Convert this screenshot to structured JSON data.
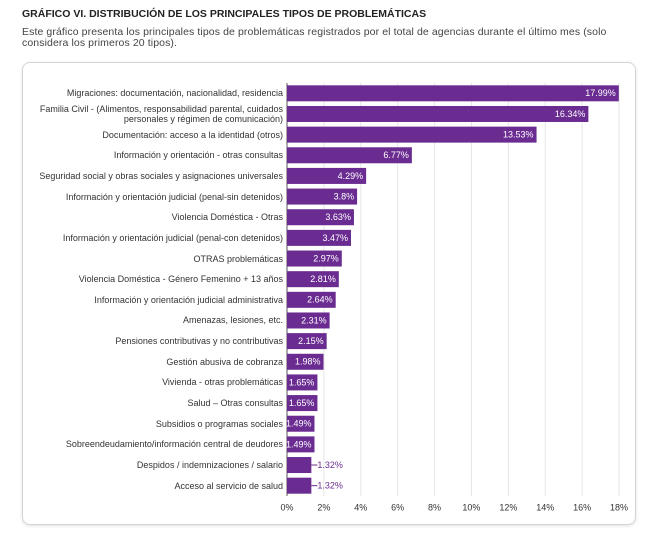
{
  "chart_data": {
    "type": "barh",
    "title": "GRÁFICO VI. DISTRIBUCIÓN DE LOS PRINCIPALES TIPOS DE PROBLEMÁTICAS",
    "subtitle": "Este gráfico presenta los principales tipos de problemáticas registrados por el total de agencias durante el último mes (solo considera los primeros 20 tipos).",
    "categories": [
      "Migraciones: documentación, nacionalidad, residencia",
      "Familia Civil - (Alimentos, responsabilidad parental, cuidados\npersonales y régimen de comunicación)",
      "Documentación: acceso a la identidad (otros)",
      "Información y orientación - otras consultas",
      "Seguridad social y obras sociales y asignaciones universales",
      "Información y orientación judicial (penal-sin detenidos)",
      "Violencia Doméstica - Otras",
      "Información y orientación judicial (penal-con detenidos)",
      "OTRAS problemáticas",
      "Violencia Doméstica - Género Femenino + 13 años",
      "Información y orientación judicial administrativa",
      "Amenazas, lesiones, etc.",
      "Pensiones contributivas y no contributivas",
      "Gestión abusiva de cobranza",
      "Vivienda - otras problemáticas",
      "Salud – Otras consultas",
      "Subsidios o programas sociales",
      "Sobreendeudamiento/información central de deudores",
      "Despidos / indemnizaciones / salario",
      "Acceso al servicio de salud"
    ],
    "values": [
      17.99,
      16.34,
      13.53,
      6.77,
      4.29,
      3.8,
      3.63,
      3.47,
      2.97,
      2.81,
      2.64,
      2.31,
      2.15,
      1.98,
      1.65,
      1.65,
      1.49,
      1.49,
      1.32,
      1.32
    ],
    "value_labels": [
      "17.99%",
      "16.34%",
      "13.53%",
      "6.77%",
      "4.29%",
      "3.8%",
      "3.63%",
      "3.47%",
      "2.97%",
      "2.81%",
      "2.64%",
      "2.31%",
      "2.15%",
      "1.98%",
      "1.65%",
      "1.65%",
      "1.49%",
      "1.49%",
      "1.32%",
      "1.32%"
    ],
    "color": "#6a2c91",
    "xlim": [
      0,
      18
    ],
    "xticks": [
      {
        "value": 0,
        "label": "0%"
      },
      {
        "value": 2,
        "label": "2%"
      },
      {
        "value": 4,
        "label": "4%"
      },
      {
        "value": 6,
        "label": "6%"
      },
      {
        "value": 8,
        "label": "8%"
      },
      {
        "value": 10,
        "label": "10%"
      },
      {
        "value": 12,
        "label": "12%"
      },
      {
        "value": 14,
        "label": "14%"
      },
      {
        "value": 16,
        "label": "16%"
      },
      {
        "value": 18,
        "label": "18%"
      }
    ],
    "grid": true
  }
}
